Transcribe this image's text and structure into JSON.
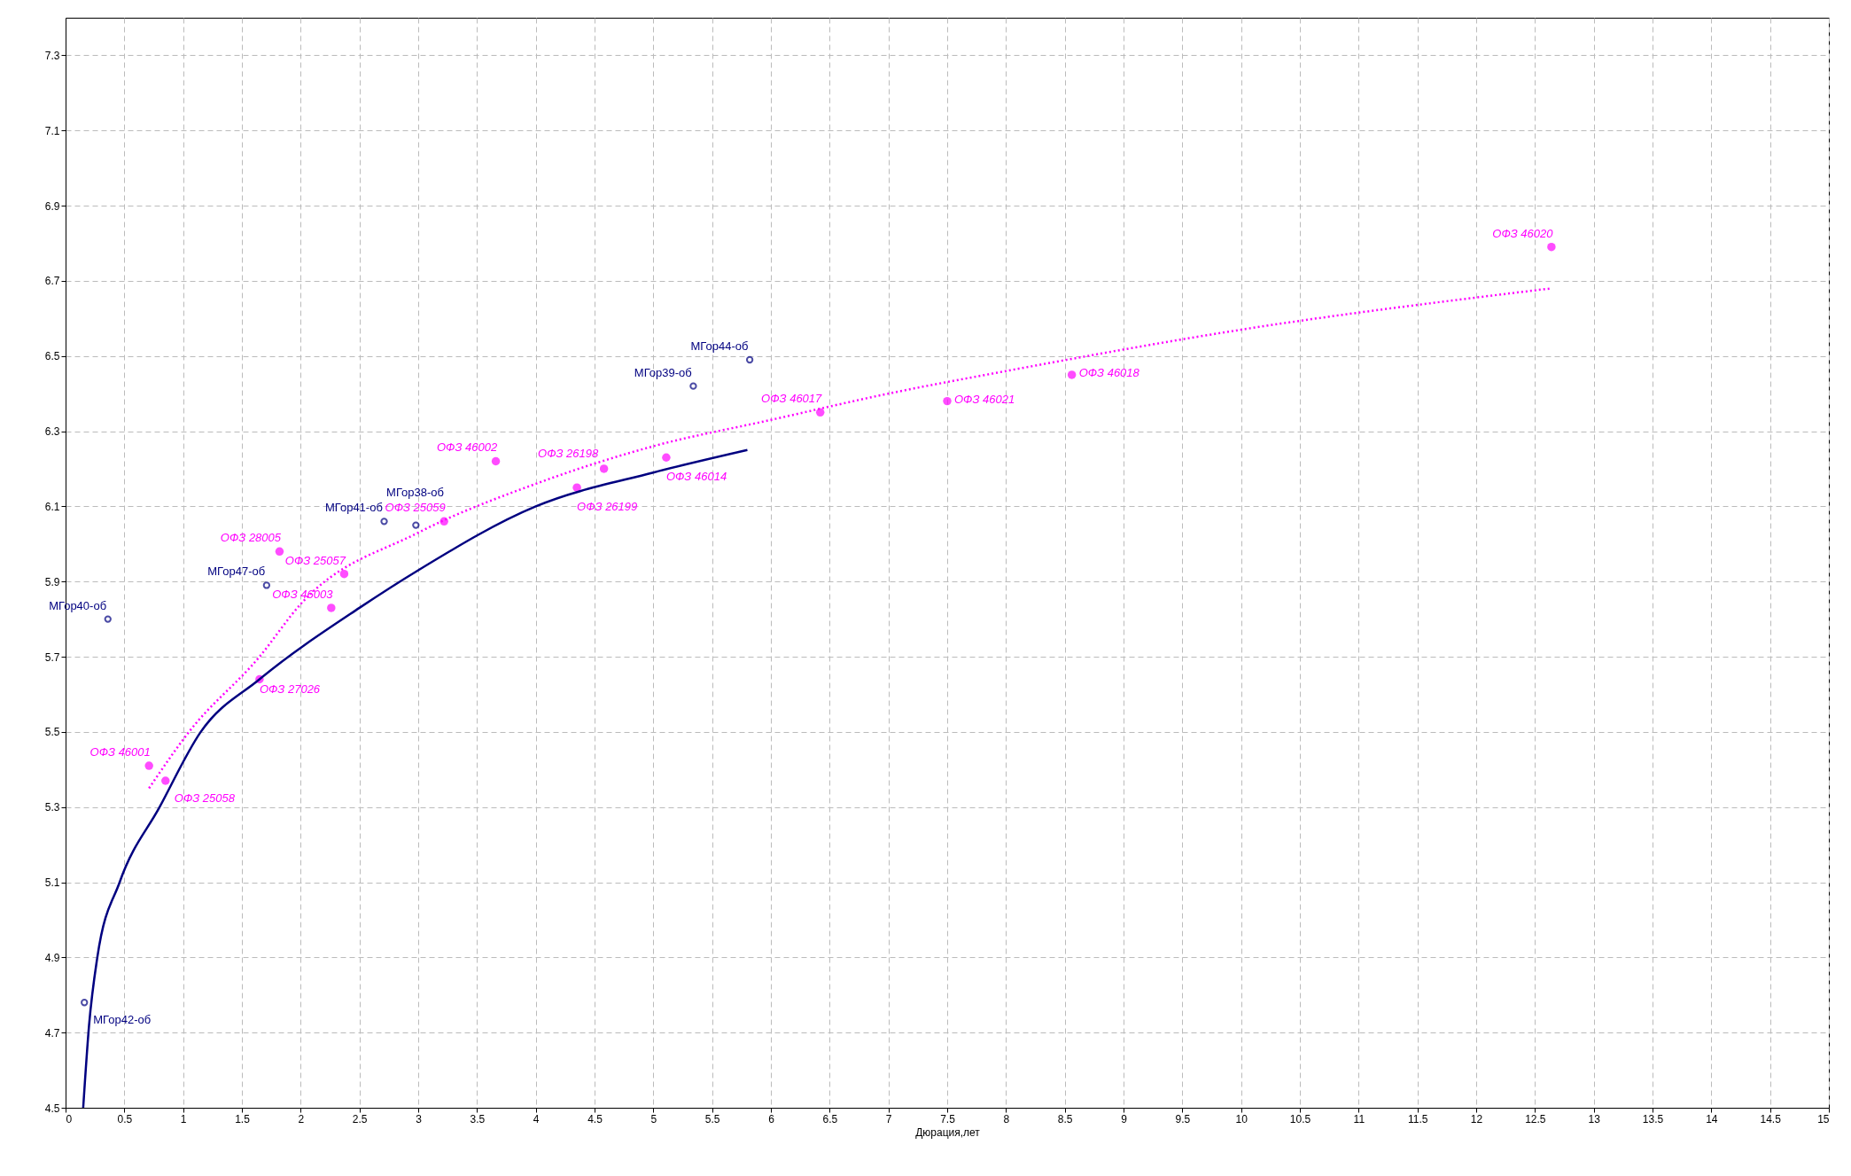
{
  "chart_data": {
    "type": "scatter",
    "xlabel": "Дюрация,лет",
    "xlim": [
      0,
      15
    ],
    "ylim": [
      4.5,
      7.4
    ],
    "xticks": [
      0,
      0.5,
      1,
      1.5,
      2,
      2.5,
      3,
      3.5,
      4,
      4.5,
      5,
      5.5,
      6,
      6.5,
      7,
      7.5,
      8,
      8.5,
      9,
      9.5,
      10,
      10.5,
      11,
      11.5,
      12,
      12.5,
      13,
      13.5,
      14,
      14.5,
      15
    ],
    "yticks": [
      4.5,
      4.7,
      4.9,
      5.1,
      5.3,
      5.5,
      5.7,
      5.9,
      6.1,
      6.3,
      6.5,
      6.7,
      6.9,
      7.1,
      7.3
    ],
    "grid": true,
    "series": [
      {
        "marker": "circle",
        "color": "#ff00ff",
        "x": [
          0.85,
          0.71,
          1.65,
          2.26,
          2.37,
          1.82,
          3.22,
          4.35,
          3.66,
          4.58,
          5.11,
          6.42,
          7.5,
          8.56,
          12.64
        ],
        "values": [
          5.37,
          5.41,
          5.64,
          5.83,
          5.92,
          5.98,
          6.06,
          6.15,
          6.22,
          6.2,
          6.23,
          6.35,
          6.38,
          6.45,
          6.79
        ],
        "value_labels": [
          "ОФЗ 25058",
          "ОФЗ 46001",
          "ОФЗ 27026",
          "ОФЗ 46003",
          "ОФЗ 25057",
          "ОФЗ 28005",
          "ОФЗ 25059",
          "ОФЗ 26199",
          "ОФЗ 46002",
          "ОФЗ 26198",
          "ОФЗ 46014",
          "ОФЗ 46017",
          "ОФЗ 46021",
          "ОФЗ 46018",
          "ОФЗ 46020"
        ]
      },
      {
        "marker": "circle",
        "color": "#000080",
        "x": [
          0.16,
          0.36,
          1.71,
          2.71,
          2.98,
          5.34,
          5.82
        ],
        "values": [
          4.78,
          5.8,
          5.89,
          6.06,
          6.05,
          6.42,
          6.49
        ],
        "value_labels": [
          "МГор42-об",
          "МГор40-об",
          "МГор47-об",
          "МГор41-об",
          "МГор38-об",
          "МГор39-об",
          "МГор44-об"
        ]
      },
      {
        "type": "line",
        "marker": "none",
        "color": "#000080",
        "line_style": "solid",
        "x": [
          0.15,
          0.2,
          0.27,
          0.46,
          0.8,
          1.15,
          1.65,
          2.5,
          3,
          4,
          5,
          5.8
        ],
        "values": [
          4.5,
          4.72,
          4.9,
          5.1,
          5.3,
          5.5,
          5.64,
          5.83,
          5.93,
          6.1,
          6.19,
          6.25
        ]
      },
      {
        "type": "line",
        "marker": "none",
        "color": "#ff00ff",
        "line_style": "dotted",
        "x": [
          0.71,
          1.05,
          1.65,
          2,
          3,
          4,
          5,
          6,
          7,
          8,
          10,
          12.64
        ],
        "values": [
          5.35,
          5.5,
          5.7,
          5.84,
          6.03,
          6.16,
          6.26,
          6.33,
          6.4,
          6.46,
          6.57,
          6.68
        ]
      }
    ]
  }
}
